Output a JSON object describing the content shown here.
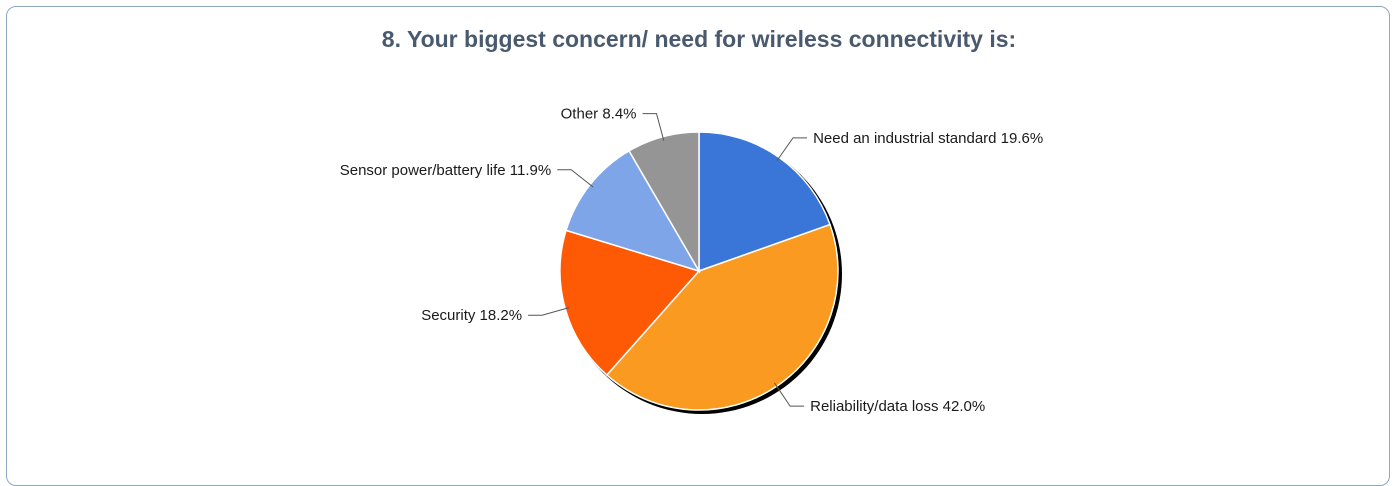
{
  "chart_data": {
    "type": "pie",
    "title": "8. Your biggest concern/ need for wireless connectivity is:",
    "slices": [
      {
        "label": "Need an industrial standard",
        "value": 19.6,
        "value_label": "19.6%",
        "color": "#3a76d8"
      },
      {
        "label": "Reliability/data loss",
        "value": 42.0,
        "value_label": "42.0%",
        "color": "#fb9a20"
      },
      {
        "label": "Security",
        "value": 18.2,
        "value_label": "18.2%",
        "color": "#fe5a06"
      },
      {
        "label": "Sensor power/battery life",
        "value": 11.9,
        "value_label": "11.9%",
        "color": "#7fa5e9"
      },
      {
        "label": "Other",
        "value": 8.4,
        "value_label": "8.4%",
        "color": "#959595"
      }
    ],
    "legend": "none",
    "labels_position": "outside with leader lines",
    "start_angle": "top (12 o'clock)",
    "direction": "clockwise"
  }
}
